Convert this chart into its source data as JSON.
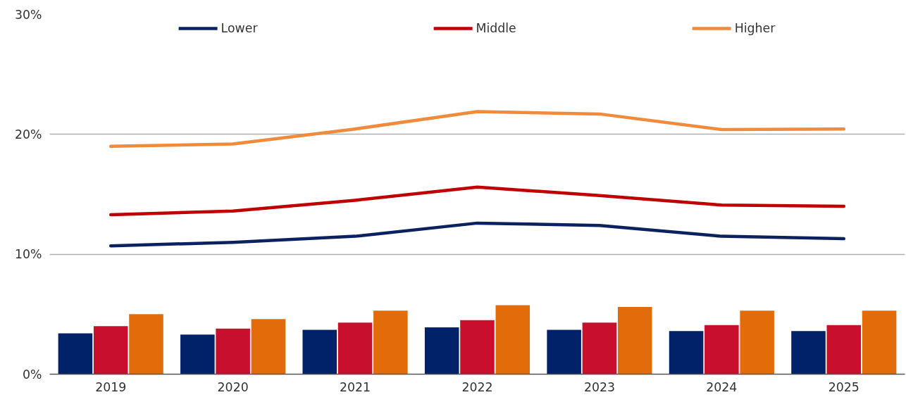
{
  "chart_data": {
    "type": "line",
    "categories": [
      "2019",
      "2020",
      "2021",
      "2022",
      "2023",
      "2024",
      "2025"
    ],
    "series": [
      {
        "type": "bar",
        "color": "#012169",
        "values": [
          3.4,
          3.3,
          3.7,
          3.9,
          3.7,
          3.6,
          3.6
        ]
      },
      {
        "type": "bar",
        "color": "#c8102e",
        "values": [
          4.0,
          3.8,
          4.3,
          4.5,
          4.3,
          4.1,
          4.1
        ]
      },
      {
        "type": "bar",
        "color": "#e36c0a",
        "values": [
          5.0,
          4.6,
          5.3,
          5.75,
          5.6,
          5.3,
          5.3
        ]
      },
      {
        "name": "Lower",
        "color": "#0c2260",
        "values": [
          10.7,
          11.0,
          11.5,
          12.6,
          12.4,
          11.5,
          11.3
        ]
      },
      {
        "name": "Middle",
        "color": "#c00000",
        "values": [
          13.3,
          13.6,
          14.5,
          15.6,
          14.9,
          14.1,
          14.0
        ]
      },
      {
        "name": "Higher",
        "color": "#f08a3c",
        "values": [
          19.0,
          19.2,
          20.45,
          21.9,
          21.7,
          20.4,
          20.45
        ]
      }
    ],
    "ylim": [
      0,
      30
    ],
    "yticks": [
      {
        "value": 0,
        "label": "0%"
      },
      {
        "value": 10,
        "label": "10%"
      },
      {
        "value": 20,
        "label": "20%"
      },
      {
        "value": 30,
        "label": "30%"
      }
    ],
    "grid": "y",
    "legend": "top",
    "line_style": "solid",
    "marker": "none"
  }
}
